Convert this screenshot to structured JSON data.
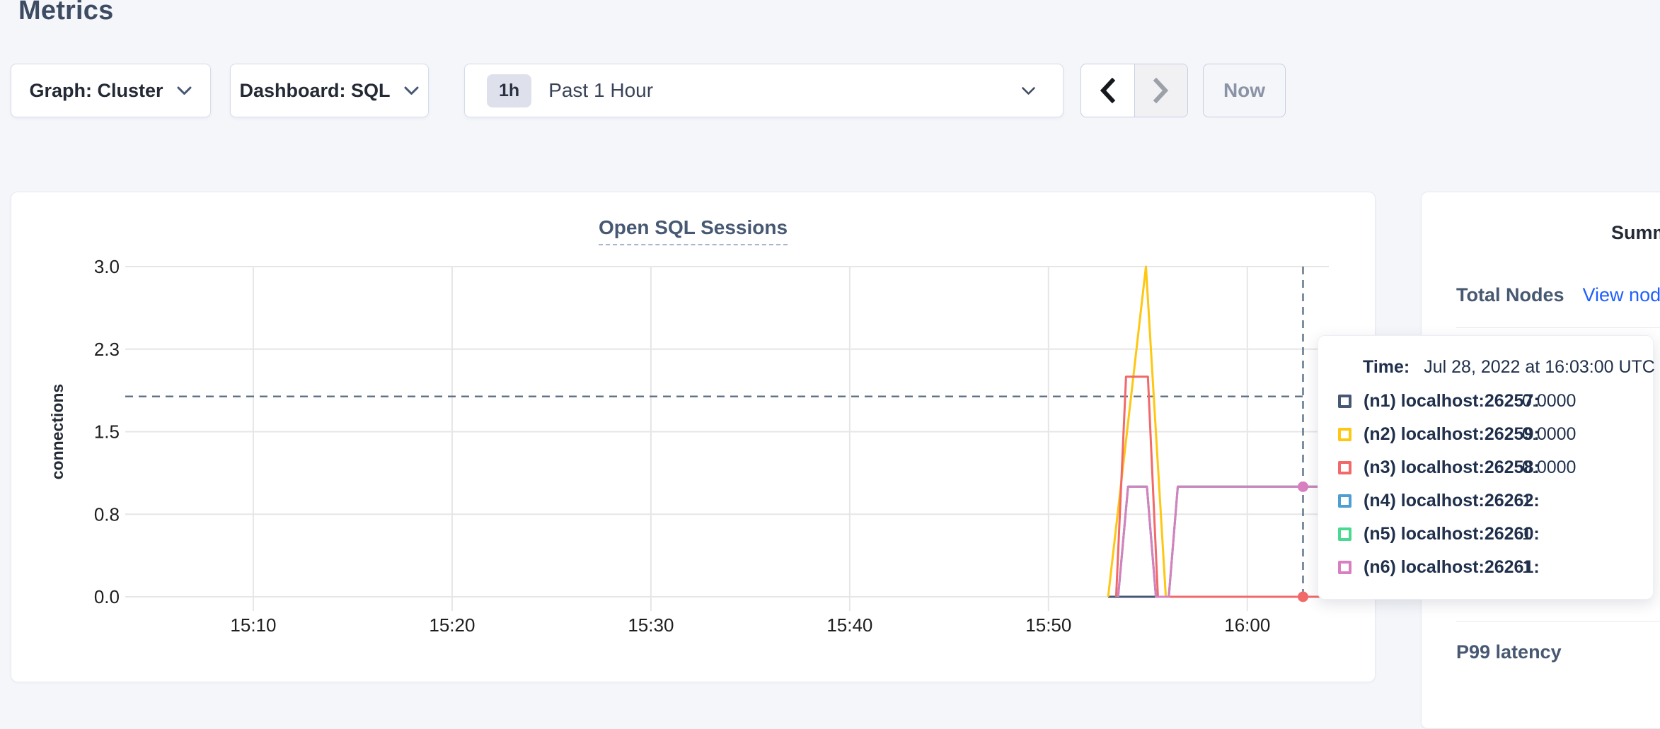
{
  "page": {
    "title": "Metrics"
  },
  "controls": {
    "graph_dropdown_label": "Graph: Cluster",
    "dashboard_dropdown_label": "Dashboard: SQL",
    "time_range": {
      "badge": "1h",
      "label": "Past 1 Hour"
    },
    "now_button_label": "Now"
  },
  "chart_card": {
    "title": "Open SQL Sessions"
  },
  "chart_data": {
    "type": "line",
    "title": "Open SQL Sessions",
    "xlabel": "",
    "ylabel": "connections",
    "ylim": [
      0,
      3
    ],
    "grid": true,
    "x_domain_minutes_after_1500": [
      3.56,
      64.1
    ],
    "yticks": [
      {
        "v": 0,
        "label": "0.0"
      },
      {
        "v": 0.75,
        "label": "0.8"
      },
      {
        "v": 1.5,
        "label": "1.5"
      },
      {
        "v": 2.25,
        "label": "2.3"
      },
      {
        "v": 3,
        "label": "3.0"
      }
    ],
    "xticks": [
      {
        "t": 10,
        "label": "15:10"
      },
      {
        "t": 20,
        "label": "15:20"
      },
      {
        "t": 30,
        "label": "15:30"
      },
      {
        "t": 40,
        "label": "15:40"
      },
      {
        "t": 50,
        "label": "15:50"
      },
      {
        "t": 60,
        "label": "16:00"
      }
    ],
    "series": [
      {
        "name": "(n1) localhost:26257",
        "color": "#475872",
        "points": [
          [
            53.0,
            0
          ],
          [
            64.1,
            0
          ]
        ]
      },
      {
        "name": "(n2) localhost:26259",
        "color": "#FDC712",
        "points": [
          [
            53.0,
            0
          ],
          [
            54.9,
            3
          ],
          [
            55.9,
            0
          ],
          [
            64.1,
            0
          ]
        ]
      },
      {
        "name": "(n3) localhost:26258",
        "color": "#F16969",
        "points": [
          [
            53.4,
            0
          ],
          [
            53.9,
            2.0
          ],
          [
            55.0,
            2.0
          ],
          [
            55.5,
            0
          ],
          [
            64.1,
            0
          ]
        ]
      },
      {
        "name": "(n4) localhost:26262",
        "color": "#4E9FD1",
        "points": [
          [
            53.5,
            0
          ],
          [
            54.0,
            1
          ],
          [
            54.95,
            1
          ],
          [
            55.4,
            0
          ],
          [
            56.05,
            0
          ],
          [
            56.5,
            1
          ],
          [
            64.1,
            1
          ]
        ]
      },
      {
        "name": "(n5) localhost:26260",
        "color": "#49D990",
        "points": [
          [
            53.5,
            0
          ],
          [
            54.0,
            1
          ],
          [
            54.95,
            1
          ],
          [
            55.4,
            0
          ],
          [
            56.05,
            0
          ],
          [
            56.5,
            1
          ],
          [
            64.1,
            1
          ]
        ]
      },
      {
        "name": "(n6) localhost:26261",
        "color": "#D77FBF",
        "points": [
          [
            53.5,
            0
          ],
          [
            54.0,
            1
          ],
          [
            54.95,
            1
          ],
          [
            55.4,
            0
          ],
          [
            56.05,
            0
          ],
          [
            56.5,
            1
          ],
          [
            64.1,
            1
          ]
        ]
      }
    ],
    "crosshair": {
      "t": 62.8,
      "hover_value_line": 1.82,
      "dots": [
        {
          "color": "#D77FBF",
          "t": 62.8,
          "v": 1
        },
        {
          "color": "#F16969",
          "t": 62.8,
          "v": 0
        }
      ]
    },
    "legend_position": "tooltip"
  },
  "tooltip": {
    "time_label": "Time:",
    "time_value": "Jul 28, 2022 at 16:03:00 UTC",
    "rows": [
      {
        "node": "(n1) localhost:26257:",
        "value": "0.0000",
        "color": "#475872"
      },
      {
        "node": "(n2) localhost:26259:",
        "value": "0.0000",
        "color": "#FDC712"
      },
      {
        "node": "(n3) localhost:26258:",
        "value": "0.0000",
        "color": "#F16969"
      },
      {
        "node": "(n4) localhost:26262:",
        "value": "1",
        "color": "#4E9FD1"
      },
      {
        "node": "(n5) localhost:26260:",
        "value": "1",
        "color": "#49D990"
      },
      {
        "node": "(n6) localhost:26261:",
        "value": "1",
        "color": "#D77FBF"
      }
    ]
  },
  "sidebar": {
    "heading": "Summary",
    "total_nodes_label": "Total Nodes",
    "view_nodes_link": "View nodes",
    "p99_label": "P99 latency"
  },
  "colors": {
    "page_bg": "#F4F6FA",
    "link_blue": "#1F5FFF",
    "crosshair": "#5B7186",
    "gridline": "#E6E6E6",
    "title_slate": "#475872"
  }
}
